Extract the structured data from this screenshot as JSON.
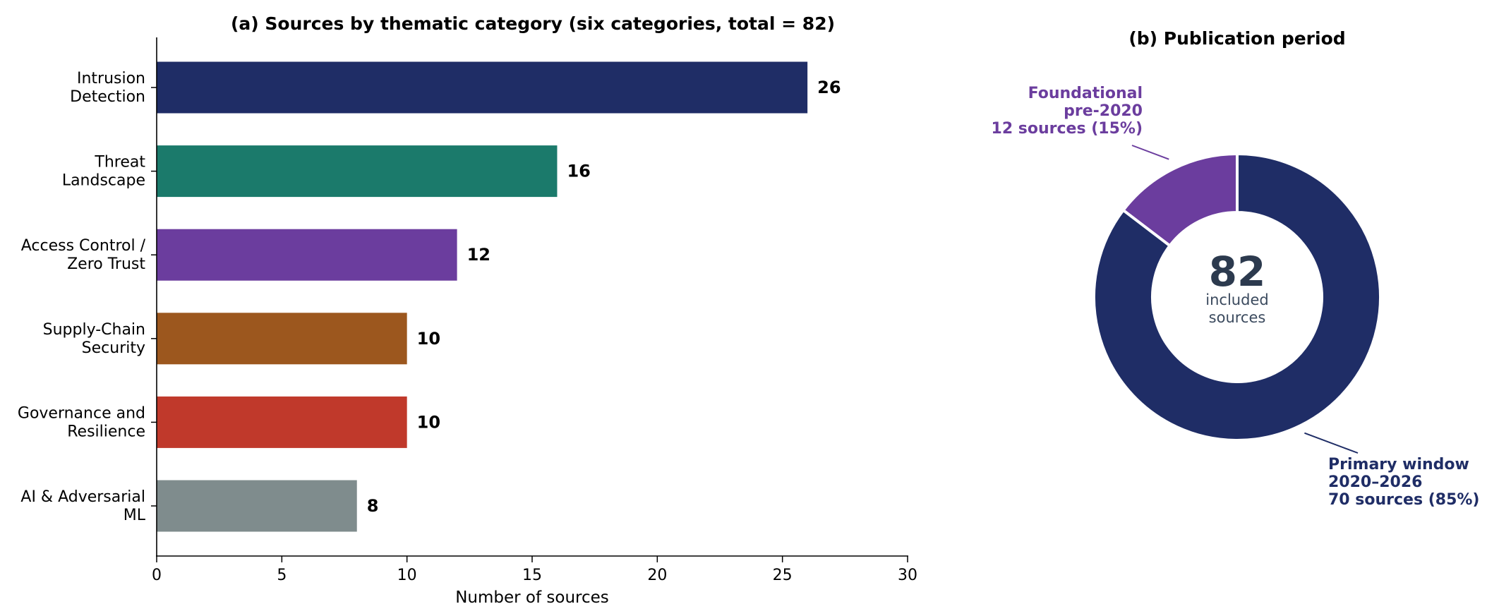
{
  "chart_data": [
    {
      "type": "bar",
      "orientation": "horizontal",
      "title": "(a) Sources by thematic category (six categories, total = 82)",
      "xlabel": "Number of sources",
      "ylabel": "",
      "xlim": [
        0,
        30
      ],
      "xticks": [
        "0",
        "5",
        "10",
        "15",
        "20",
        "25",
        "30"
      ],
      "grid": false,
      "categories": [
        {
          "label": [
            "Intrusion",
            "Detection"
          ],
          "value": 26,
          "value_label": "26",
          "color": "#1f2d66"
        },
        {
          "label": [
            "Threat",
            "Landscape"
          ],
          "value": 16,
          "value_label": "16",
          "color": "#1b7a6b"
        },
        {
          "label": [
            "Access Control /",
            "Zero Trust"
          ],
          "value": 12,
          "value_label": "12",
          "color": "#6b3d9e"
        },
        {
          "label": [
            "Supply-Chain",
            "Security"
          ],
          "value": 10,
          "value_label": "10",
          "color": "#9c571e"
        },
        {
          "label": [
            "Governance and",
            "Resilience"
          ],
          "value": 10,
          "value_label": "10",
          "color": "#c0392b"
        },
        {
          "label": [
            "AI & Adversarial",
            "ML"
          ],
          "value": 8,
          "value_label": "8",
          "color": "#7f8c8d"
        }
      ]
    },
    {
      "type": "pie",
      "variant": "donut",
      "title": "(b) Publication period",
      "center_value": "82",
      "center_label": [
        "included",
        "sources"
      ],
      "slices": [
        {
          "name": "Foundational pre-2020",
          "value": 12,
          "percent": 15,
          "color": "#6b3d9e",
          "annotation": [
            "Foundational",
            "pre-2020",
            "12 sources (15%)"
          ]
        },
        {
          "name": "Primary window 2020–2026",
          "value": 70,
          "percent": 85,
          "color": "#1f2d66",
          "annotation": [
            "Primary window",
            "2020–2026",
            "70 sources (85%)"
          ]
        }
      ]
    }
  ]
}
